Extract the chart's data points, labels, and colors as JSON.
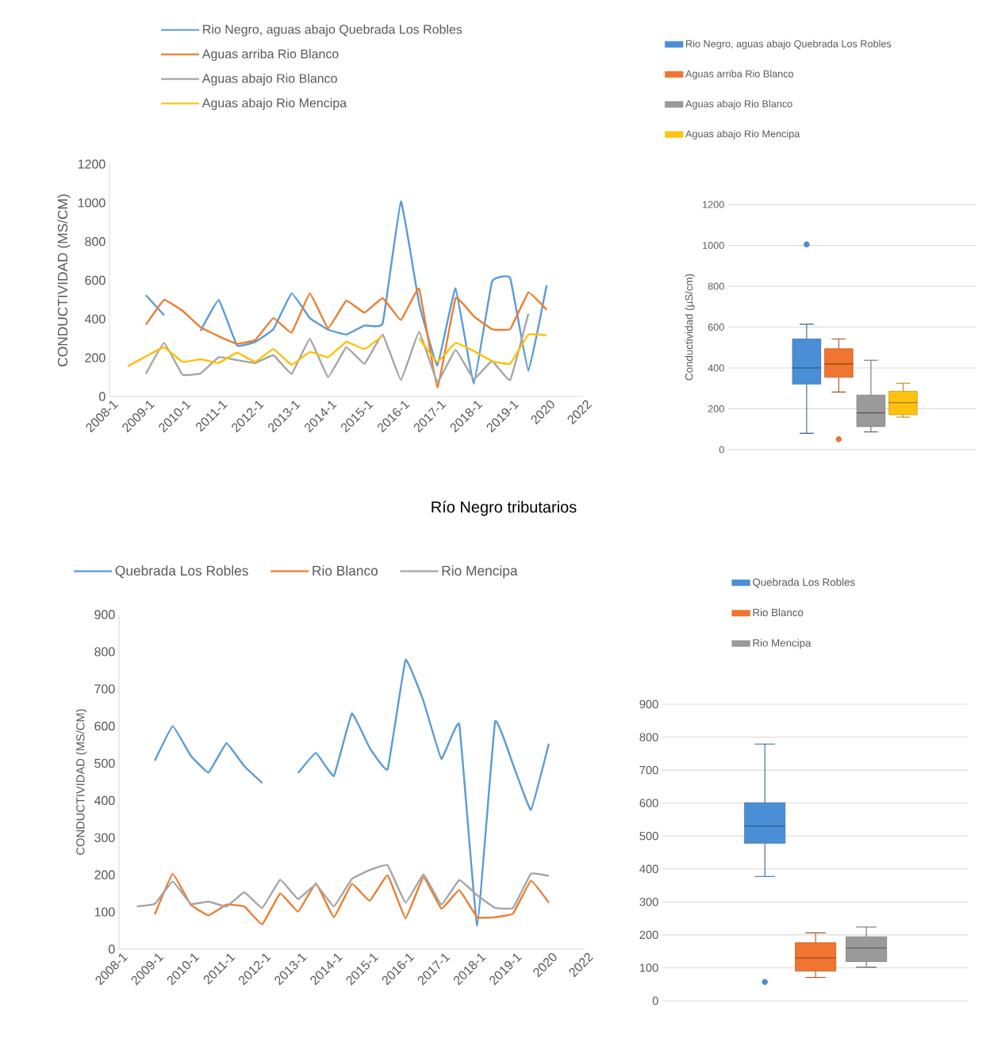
{
  "chart_data": [
    {
      "type": "line",
      "ylabel": "CONDUCTIVIDAD (MS/CM)",
      "legend": "top",
      "categories": [
        "2008-1",
        null,
        "2009-1",
        null,
        "2010-1",
        null,
        "2011-1",
        null,
        "2012-1",
        null,
        "2013-1",
        null,
        "2014-1",
        null,
        "2015-1",
        null,
        "2016-1",
        null,
        "2017-1",
        null,
        "2018-1",
        null,
        "2019-1",
        null,
        "2020",
        null,
        "2022"
      ],
      "ylim": [
        0,
        1200
      ],
      "yticks": [
        0,
        200,
        400,
        600,
        800,
        1000,
        1200
      ],
      "series": [
        {
          "name": "Rio Negro, aguas abajo Quebrada Los Robles",
          "color": "#5b9bd5",
          "values": [
            null,
            null,
            523,
            420,
            null,
            339,
            499,
            264,
            282,
            348,
            533,
            405,
            345,
            320,
            367,
            377,
            1007,
            480,
            160,
            559,
            66,
            593,
            612,
            132,
            574,
            null,
            null
          ]
        },
        {
          "name": "Aguas arriba Rio Blanco",
          "color": "#ed7d31",
          "values": [
            null,
            null,
            371,
            499,
            443,
            358,
            311,
            273,
            292,
            405,
            330,
            533,
            352,
            495,
            433,
            508,
            395,
            556,
            47,
            508,
            414,
            348,
            348,
            537,
            448,
            null,
            null
          ]
        },
        {
          "name": "Aguas abajo Rio Blanco",
          "color": "#a5a5a5",
          "values": [
            null,
            null,
            117,
            277,
            113,
            119,
            203,
            188,
            173,
            213,
            117,
            298,
            100,
            254,
            169,
            320,
            85,
            335,
            75,
            241,
            90,
            183,
            85,
            429,
            null,
            null,
            null
          ]
        },
        {
          "name": "Aguas abajo Rio Mencipa",
          "color": "#ffc000",
          "values": [
            null,
            156,
            207,
            254,
            179,
            192,
            173,
            226,
            179,
            245,
            164,
            230,
            203,
            282,
            245,
            314,
            null,
            301,
            179,
            277,
            235,
            183,
            169,
            320,
            316,
            null,
            null
          ]
        }
      ]
    },
    {
      "type": "box",
      "ylabel": "Conductividad (µS/cm)",
      "legend": "top",
      "grid": "y",
      "categories": [
        null
      ],
      "ylim": [
        0,
        1200
      ],
      "yticks": [
        0,
        200,
        400,
        600,
        800,
        1000,
        1200
      ],
      "series": [
        {
          "name": "Rio Negro, aguas abajo Quebrada Los Robles",
          "color": "#4a8fd6",
          "boxes": [
            {
              "low": 80,
              "q1": 321,
              "median": 400,
              "q3": 542,
              "high": 614,
              "outliers": [
                1005
              ]
            }
          ]
        },
        {
          "name": "Aguas arriba Rio Blanco",
          "color": "#f07530",
          "boxes": [
            {
              "low": 282,
              "q1": 354,
              "median": 420,
              "q3": 494,
              "high": 542,
              "outliers": [
                51
              ]
            }
          ]
        },
        {
          "name": "Aguas abajo Rio Blanco",
          "color": "#9a9a9a",
          "boxes": [
            {
              "low": 87,
              "q1": 113,
              "median": 180,
              "q3": 267,
              "high": 438
            }
          ]
        },
        {
          "name": "Aguas abajo Rio Mencipa",
          "color": "#ffc20e",
          "boxes": [
            {
              "low": 159,
              "q1": 171,
              "median": 230,
              "q3": 286,
              "high": 325
            }
          ]
        }
      ]
    },
    {
      "type": "line",
      "title": "Río Negro tributarios",
      "ylabel": "CONDUCTIVIDAD (MS/CM)",
      "legend": "top",
      "categories": [
        "2008-1",
        null,
        "2009-1",
        null,
        "2010-1",
        null,
        "2011-1",
        null,
        "2012-1",
        null,
        "2013-1",
        null,
        "2014-1",
        null,
        "2015-1",
        null,
        "2016-1",
        null,
        "2017-1",
        null,
        "2018-1",
        null,
        "2019-1",
        null,
        "2020",
        null,
        "2022"
      ],
      "ylim": [
        0,
        900
      ],
      "yticks": [
        0,
        100,
        200,
        300,
        400,
        500,
        600,
        700,
        800,
        900
      ],
      "series": [
        {
          "name": "Quebrada Los Robles",
          "color": "#5b9bd5",
          "values": [
            null,
            null,
            507,
            600,
            521,
            475,
            554,
            492,
            447,
            null,
            474,
            528,
            466,
            634,
            541,
            484,
            778,
            668,
            512,
            605,
            62,
            612,
            497,
            375,
            553,
            null,
            null
          ]
        },
        {
          "name": "Rio Blanco",
          "color": "#ed7d31",
          "values": [
            null,
            null,
            94,
            203,
            120,
            91,
            120,
            115,
            67,
            150,
            101,
            177,
            86,
            176,
            130,
            199,
            83,
            194,
            109,
            159,
            86,
            86,
            96,
            184,
            125,
            null,
            null
          ]
        },
        {
          "name": "Rio Mencipa",
          "color": "#a5a5a5",
          "values": [
            null,
            115,
            122,
            182,
            122,
            128,
            115,
            153,
            111,
            187,
            135,
            174,
            115,
            189,
            213,
            226,
            125,
            201,
            120,
            186,
            145,
            111,
            111,
            203,
            197,
            null,
            null
          ]
        }
      ]
    },
    {
      "type": "box",
      "legend": "top",
      "grid": "y",
      "categories": [
        null
      ],
      "ylim": [
        0,
        900
      ],
      "yticks": [
        0,
        100,
        200,
        300,
        400,
        500,
        600,
        700,
        800,
        900
      ],
      "series": [
        {
          "name": "Quebrada Los Robles",
          "color": "#4a8fd6",
          "boxes": [
            {
              "low": 377,
              "q1": 478,
              "median": 530,
              "q3": 601,
              "high": 779,
              "outliers": [
                57
              ]
            }
          ]
        },
        {
          "name": "Rio Blanco",
          "color": "#f07530",
          "boxes": [
            {
              "low": 71,
              "q1": 90,
              "median": 130,
              "q3": 176,
              "high": 206
            }
          ]
        },
        {
          "name": "Rio Mencipa",
          "color": "#9a9a9a",
          "boxes": [
            {
              "low": 102,
              "q1": 119,
              "median": 160,
              "q3": 194,
              "high": 224
            }
          ]
        }
      ]
    }
  ]
}
